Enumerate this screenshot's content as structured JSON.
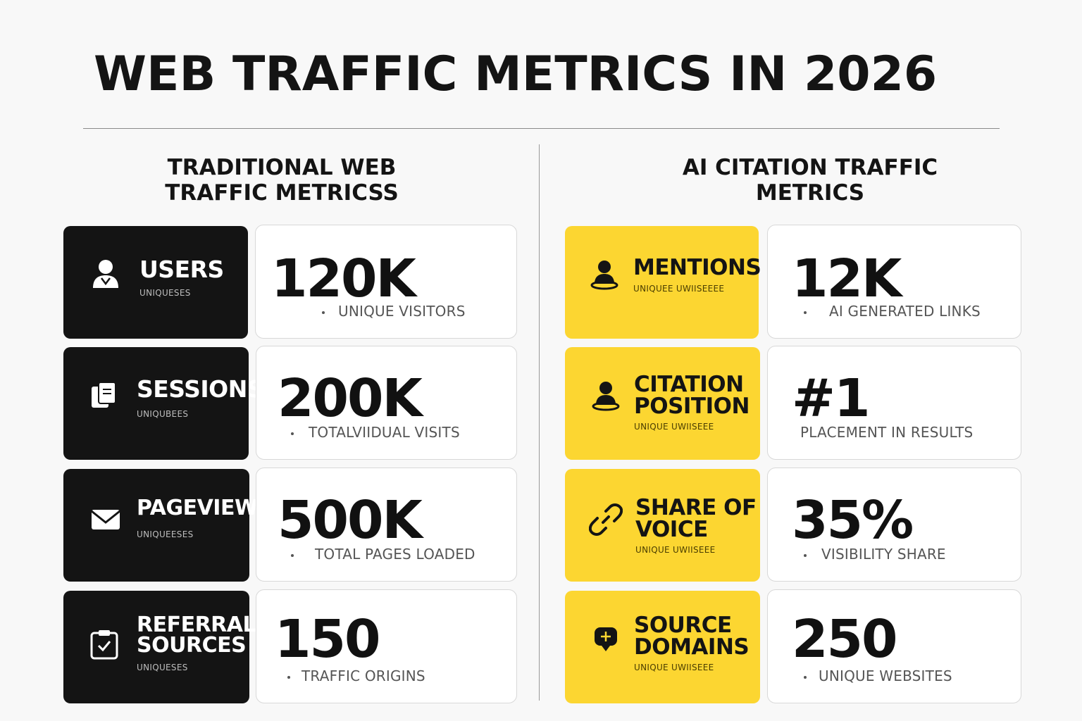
{
  "title": "WEB TRAFFIC METRICS IN 2026",
  "left_column": {
    "heading_line1": "TRADITIONAL WEB",
    "heading_line2": "TRAFFIC METRICSS",
    "rows": [
      {
        "label": "USERS",
        "label2": "",
        "sub": "UNIQUESES",
        "value": "120K",
        "desc": "UNIQUE VISITORS",
        "icon": "user-icon"
      },
      {
        "label": "SESSIONS",
        "label2": "",
        "sub": "UNIQUBEES",
        "value": "200K",
        "desc": "TOTALVIIDUAL VISITS",
        "icon": "copy-documents-icon"
      },
      {
        "label": "PAGEVIEWS",
        "label2": "",
        "sub": "UNIQUEESES",
        "value": "500K",
        "desc": "TOTAL PAGES LOADED",
        "icon": "envelope-icon"
      },
      {
        "label": "REFERRAL",
        "label2": "SOURCES",
        "sub": "UNIQUESES",
        "value": "150",
        "desc": "TRAFFIC ORIGINS",
        "icon": "clipboard-icon"
      }
    ]
  },
  "right_column": {
    "heading_line1": "AI CITATION TRAFFIC",
    "heading_line2": "METRICS",
    "rows": [
      {
        "label": "MENTIONS",
        "label2": "",
        "sub": "UNIQUEE UWIISEEEE",
        "value": "12K",
        "desc": "AI GENERATED LINKS",
        "icon": "person-pin-icon"
      },
      {
        "label": "CITATION",
        "label2": "POSITION",
        "sub": "UNIQUE UWIISEEE",
        "value": "#1",
        "desc": "PLACEMENT IN RESULTS",
        "icon": "person-pin-icon"
      },
      {
        "label": "SHARE OF",
        "label2": "VOICE",
        "sub": "UNIQUE UWIISEEE",
        "value": "35%",
        "desc": "VISIBILITY SHARE",
        "icon": "link-icon"
      },
      {
        "label": "SOURCE",
        "label2": "DOMAINS",
        "sub": "UNIQUE UWIISEEE",
        "value": "250",
        "desc": "UNIQUE WEBSITES",
        "icon": "globe-pin-icon"
      }
    ]
  },
  "colors": {
    "dark_card": "#141414",
    "yellow_card": "#fcd631",
    "background": "#f8f8f8"
  }
}
